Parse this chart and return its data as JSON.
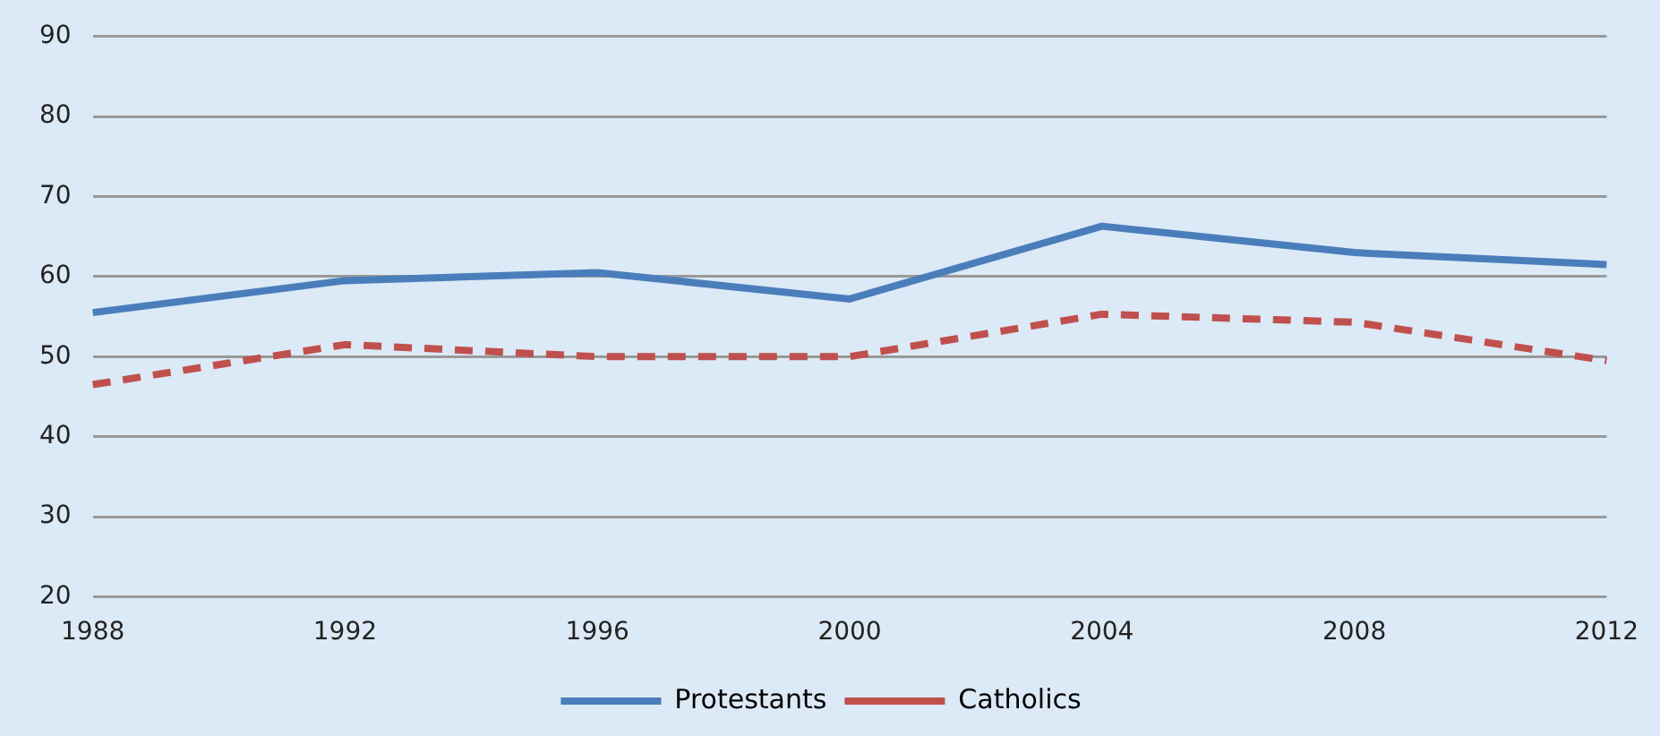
{
  "chart_data": {
    "type": "line",
    "categories": [
      "1988",
      "1992",
      "1996",
      "2000",
      "2004",
      "2008",
      "2012"
    ],
    "series": [
      {
        "name": "Protestants",
        "color": "#4a7ebb",
        "line_style": "solid",
        "values": [
          55.5,
          59.5,
          60.5,
          57.2,
          66.3,
          63,
          61.5
        ]
      },
      {
        "name": "Catholics",
        "color": "#c0504d",
        "line_style": "dashed",
        "values": [
          46.5,
          51.5,
          50,
          50,
          55.3,
          54.3,
          49.5
        ]
      }
    ],
    "ylim": [
      20,
      90
    ],
    "yticks": [
      20,
      30,
      40,
      50,
      60,
      70,
      80,
      90
    ],
    "grid": "y",
    "legend": "bottom",
    "marker": "none"
  }
}
